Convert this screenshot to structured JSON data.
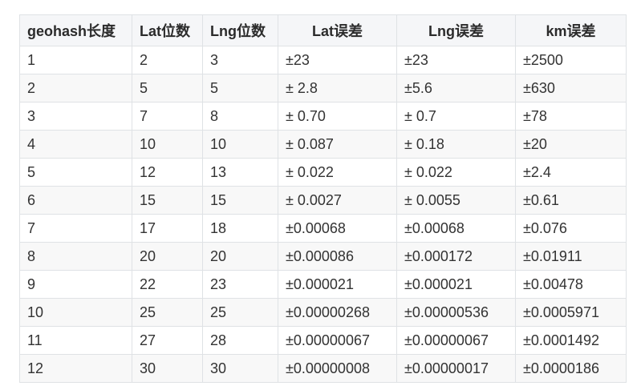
{
  "table": {
    "headers": [
      "geohash长度",
      "Lat位数",
      "Lng位数",
      "Lat误差",
      "Lng误差",
      "km误差"
    ],
    "rows": [
      [
        "1",
        "2",
        "3",
        "±23",
        "±23",
        "±2500"
      ],
      [
        "2",
        "5",
        "5",
        "± 2.8",
        "±5.6",
        "±630"
      ],
      [
        "3",
        "7",
        "8",
        "± 0.70",
        "± 0.7",
        "±78"
      ],
      [
        "4",
        "10",
        "10",
        "± 0.087",
        "± 0.18",
        "±20"
      ],
      [
        "5",
        "12",
        "13",
        "± 0.022",
        "± 0.022",
        "±2.4"
      ],
      [
        "6",
        "15",
        "15",
        "± 0.0027",
        "± 0.0055",
        "±0.61"
      ],
      [
        "7",
        "17",
        "18",
        "±0.00068",
        "±0.00068",
        "±0.076"
      ],
      [
        "8",
        "20",
        "20",
        "±0.000086",
        "±0.000172",
        "±0.01911"
      ],
      [
        "9",
        "22",
        "23",
        "±0.000021",
        "±0.000021",
        "±0.00478"
      ],
      [
        "10",
        "25",
        "25",
        "±0.00000268",
        "±0.00000536",
        "±0.0005971"
      ],
      [
        "11",
        "27",
        "28",
        "±0.00000067",
        "±0.00000067",
        "±0.0001492"
      ],
      [
        "12",
        "30",
        "30",
        "±0.00000008",
        "±0.00000017",
        "±0.0000186"
      ]
    ]
  }
}
